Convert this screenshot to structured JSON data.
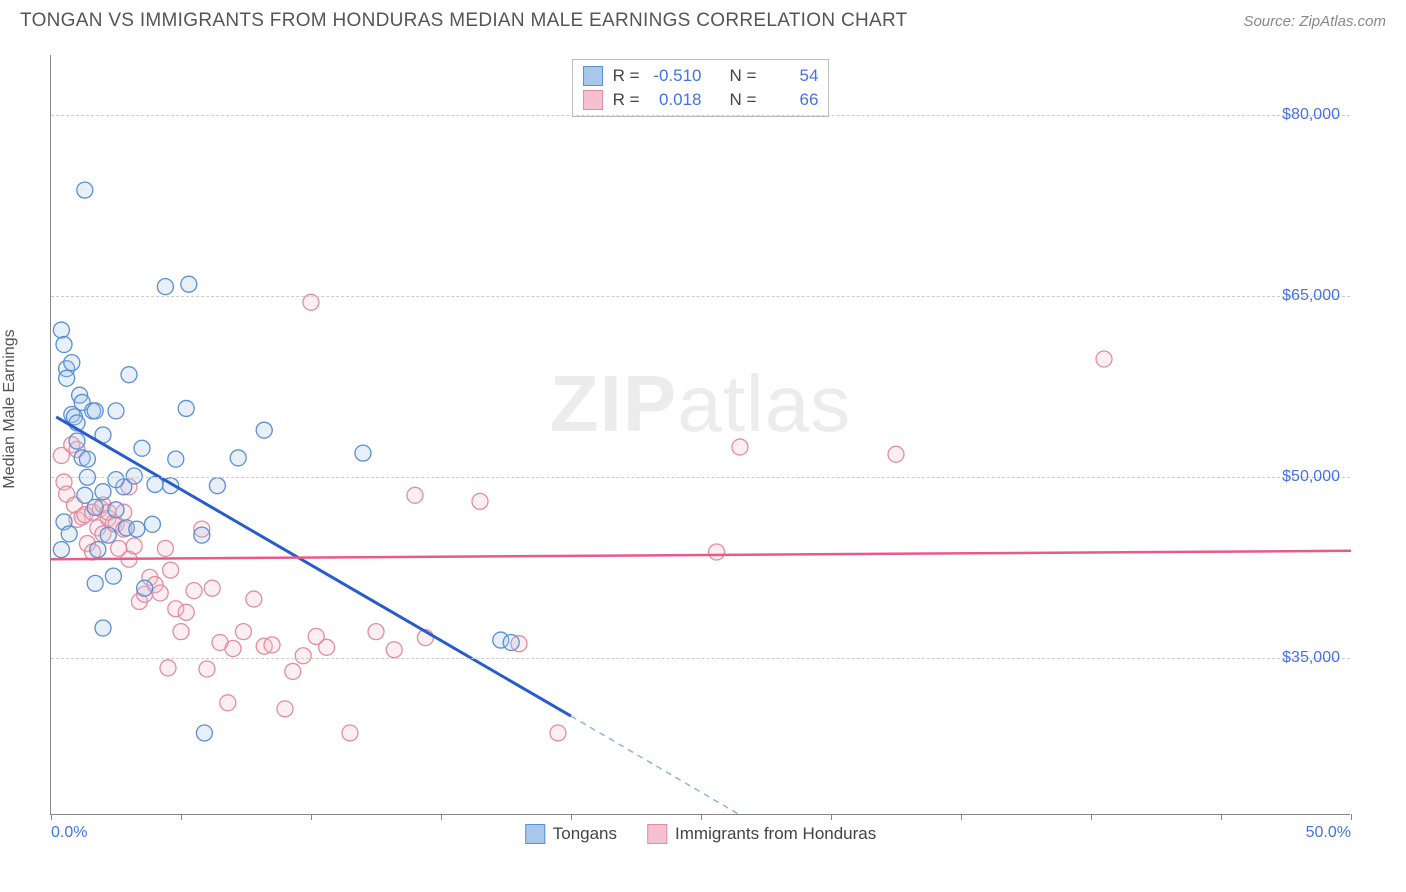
{
  "title": "TONGAN VS IMMIGRANTS FROM HONDURAS MEDIAN MALE EARNINGS CORRELATION CHART",
  "source": "Source: ZipAtlas.com",
  "watermark_zip": "ZIP",
  "watermark_atlas": "atlas",
  "ylabel": "Median Male Earnings",
  "chart": {
    "type": "scatter",
    "background_color": "#ffffff",
    "grid_color": "#cccccc",
    "axis_color": "#888888",
    "xlim": [
      0,
      50
    ],
    "ylim": [
      22000,
      85000
    ],
    "x_ticks_minor": [
      0,
      5,
      10,
      15,
      20,
      25,
      30,
      35,
      40,
      45,
      50
    ],
    "x_ticks_labeled": [
      {
        "v": 0,
        "label": "0.0%"
      },
      {
        "v": 50,
        "label": "50.0%"
      }
    ],
    "y_ticks": [
      {
        "v": 35000,
        "label": "$35,000"
      },
      {
        "v": 50000,
        "label": "$50,000"
      },
      {
        "v": 65000,
        "label": "$65,000"
      },
      {
        "v": 80000,
        "label": "$80,000"
      }
    ],
    "marker_radius": 8,
    "marker_stroke_width": 1.3,
    "marker_fill_opacity": 0.28,
    "series": [
      {
        "name": "Tongans",
        "label": "Tongans",
        "color_stroke": "#5a8fd6",
        "color_fill": "#a9c7ea",
        "R": "-0.510",
        "N": "54",
        "trend": {
          "x1": 0.2,
          "y1": 55000,
          "x2": 20,
          "y2": 30200,
          "color": "#2a5cc9",
          "width": 3
        },
        "trend_extrap": {
          "x1": 20,
          "y1": 30200,
          "x2": 26.5,
          "y2": 22000,
          "color": "#8fb4e6"
        },
        "points": [
          [
            0.4,
            62200
          ],
          [
            0.5,
            61000
          ],
          [
            0.6,
            59000
          ],
          [
            0.6,
            58200
          ],
          [
            0.8,
            59500
          ],
          [
            0.8,
            55200
          ],
          [
            0.9,
            55000
          ],
          [
            1.0,
            54500
          ],
          [
            1.0,
            53000
          ],
          [
            1.1,
            56800
          ],
          [
            1.2,
            56200
          ],
          [
            1.2,
            51600
          ],
          [
            1.3,
            48500
          ],
          [
            1.4,
            50000
          ],
          [
            1.4,
            51500
          ],
          [
            1.6,
            55500
          ],
          [
            1.7,
            55500
          ],
          [
            1.7,
            47500
          ],
          [
            1.7,
            41200
          ],
          [
            1.8,
            44000
          ],
          [
            2.0,
            53500
          ],
          [
            2.0,
            48800
          ],
          [
            2.0,
            37500
          ],
          [
            2.2,
            45200
          ],
          [
            2.4,
            41800
          ],
          [
            2.5,
            47300
          ],
          [
            2.5,
            55500
          ],
          [
            2.8,
            49200
          ],
          [
            2.9,
            45800
          ],
          [
            3.0,
            58500
          ],
          [
            3.2,
            50100
          ],
          [
            3.3,
            45700
          ],
          [
            3.5,
            52400
          ],
          [
            3.6,
            40800
          ],
          [
            3.9,
            46100
          ],
          [
            4.0,
            49400
          ],
          [
            4.4,
            65800
          ],
          [
            4.6,
            49300
          ],
          [
            4.8,
            51500
          ],
          [
            5.2,
            55700
          ],
          [
            5.3,
            66000
          ],
          [
            5.8,
            45200
          ],
          [
            5.9,
            28800
          ],
          [
            6.4,
            49300
          ],
          [
            7.2,
            51600
          ],
          [
            8.2,
            53900
          ],
          [
            12.0,
            52000
          ],
          [
            1.3,
            73800
          ],
          [
            17.3,
            36500
          ],
          [
            17.7,
            36300
          ],
          [
            2.5,
            49800
          ],
          [
            0.4,
            44000
          ],
          [
            0.5,
            46300
          ],
          [
            0.7,
            45300
          ]
        ]
      },
      {
        "name": "Immigrants from Honduras",
        "label": "Immigrants from Honduras",
        "color_stroke": "#e28da2",
        "color_fill": "#f3c2ce",
        "R": "0.018",
        "N": "66",
        "trend": {
          "x1": 0,
          "y1": 43200,
          "x2": 50,
          "y2": 43900,
          "color": "#e75a8a",
          "width": 2.5
        },
        "points": [
          [
            0.4,
            51800
          ],
          [
            0.5,
            49600
          ],
          [
            0.6,
            48600
          ],
          [
            0.8,
            52700
          ],
          [
            0.9,
            47700
          ],
          [
            1.0,
            46500
          ],
          [
            1.0,
            52300
          ],
          [
            1.2,
            46700
          ],
          [
            1.3,
            46900
          ],
          [
            1.4,
            44500
          ],
          [
            1.6,
            47100
          ],
          [
            1.6,
            43800
          ],
          [
            1.8,
            45800
          ],
          [
            1.9,
            47400
          ],
          [
            2.0,
            47700
          ],
          [
            2.0,
            45300
          ],
          [
            2.2,
            46600
          ],
          [
            2.2,
            47100
          ],
          [
            2.4,
            46200
          ],
          [
            2.5,
            46100
          ],
          [
            2.6,
            44100
          ],
          [
            2.8,
            47100
          ],
          [
            2.8,
            45700
          ],
          [
            3.0,
            49200
          ],
          [
            3.0,
            43200
          ],
          [
            3.2,
            44300
          ],
          [
            3.4,
            39700
          ],
          [
            3.6,
            40300
          ],
          [
            3.8,
            41700
          ],
          [
            4.0,
            41100
          ],
          [
            4.2,
            40400
          ],
          [
            4.4,
            44100
          ],
          [
            4.6,
            42300
          ],
          [
            4.8,
            39100
          ],
          [
            5.0,
            37200
          ],
          [
            5.2,
            38800
          ],
          [
            5.5,
            40600
          ],
          [
            5.8,
            45700
          ],
          [
            6.0,
            34100
          ],
          [
            6.2,
            40800
          ],
          [
            6.5,
            36300
          ],
          [
            6.8,
            31300
          ],
          [
            7.0,
            35800
          ],
          [
            7.4,
            37200
          ],
          [
            7.8,
            39900
          ],
          [
            8.2,
            36000
          ],
          [
            8.5,
            36100
          ],
          [
            9.0,
            30800
          ],
          [
            9.3,
            33900
          ],
          [
            9.7,
            35200
          ],
          [
            10.0,
            64500
          ],
          [
            10.2,
            36800
          ],
          [
            10.6,
            35900
          ],
          [
            11.5,
            28800
          ],
          [
            12.5,
            37200
          ],
          [
            13.2,
            35700
          ],
          [
            14.0,
            48500
          ],
          [
            14.4,
            36700
          ],
          [
            16.5,
            48000
          ],
          [
            18.0,
            36200
          ],
          [
            19.5,
            28800
          ],
          [
            26.5,
            52500
          ],
          [
            25.6,
            43800
          ],
          [
            32.5,
            51900
          ],
          [
            40.5,
            59800
          ],
          [
            4.5,
            34200
          ]
        ]
      }
    ]
  },
  "legend": {
    "top": {
      "R_label": "R =",
      "N_label": "N ="
    }
  },
  "title_fontsize": 19,
  "label_fontsize": 16
}
